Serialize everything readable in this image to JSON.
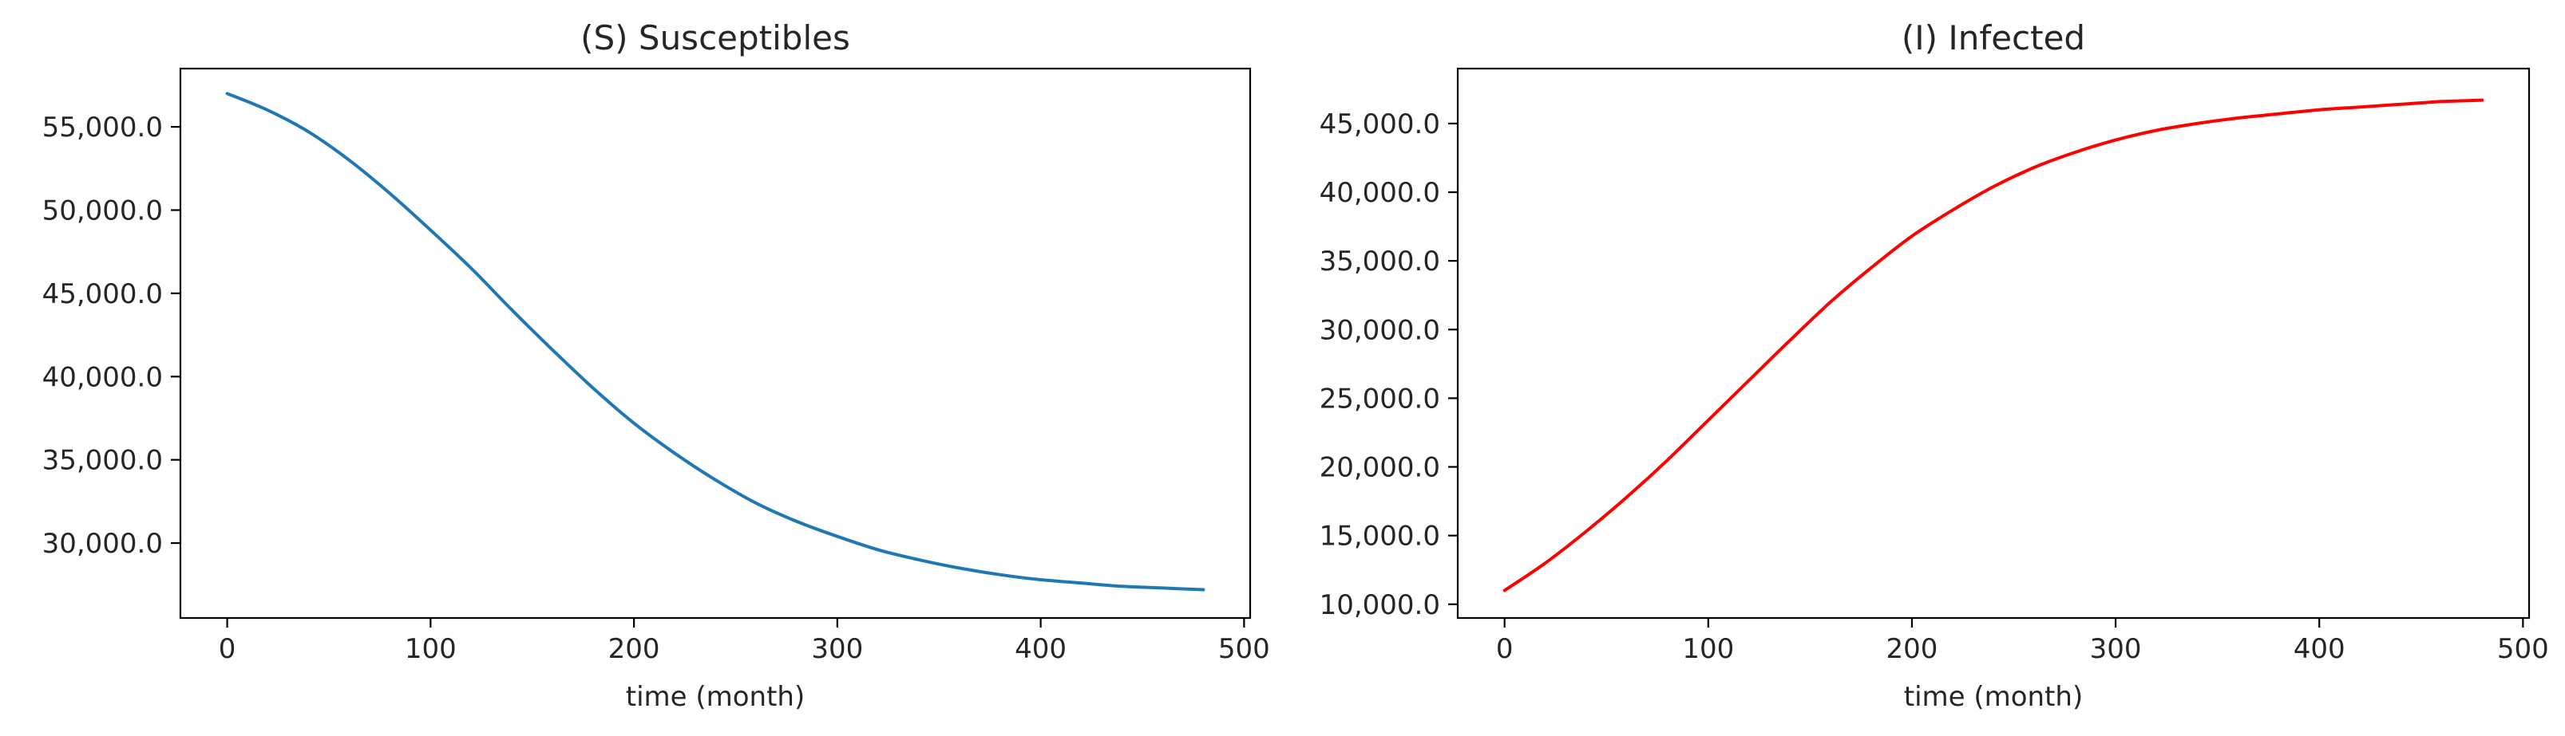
{
  "chart_data": [
    {
      "type": "line",
      "title": "(S) Susceptibles",
      "xlabel": "time (month)",
      "ylabel": "",
      "xlim": [
        -23,
        503
      ],
      "ylim": [
        25500,
        58500
      ],
      "xticks": [
        0,
        100,
        200,
        300,
        400,
        500
      ],
      "xtick_labels": [
        "0",
        "100",
        "200",
        "300",
        "400",
        "500"
      ],
      "yticks": [
        30000,
        35000,
        40000,
        45000,
        50000,
        55000
      ],
      "ytick_labels": [
        "30,000.0",
        "35,000.0",
        "40,000.0",
        "45,000.0",
        "50,000.0",
        "55,000.0"
      ],
      "grid": false,
      "color": "#1f77b4",
      "series": [
        {
          "x": [
            0,
            20,
            40,
            60,
            80,
            100,
            120,
            140,
            160,
            180,
            200,
            220,
            240,
            260,
            280,
            300,
            320,
            340,
            360,
            380,
            400,
            420,
            440,
            460,
            480
          ],
          "y": [
            57000,
            56000,
            54700,
            53000,
            51000,
            48800,
            46500,
            44000,
            41600,
            39300,
            37200,
            35400,
            33800,
            32400,
            31300,
            30400,
            29600,
            29000,
            28500,
            28100,
            27800,
            27600,
            27400,
            27300,
            27200
          ]
        }
      ]
    },
    {
      "type": "line",
      "title": "(I) Infected",
      "xlabel": "time (month)",
      "ylabel": "",
      "xlim": [
        -23,
        503
      ],
      "ylim": [
        9000,
        49000
      ],
      "xticks": [
        0,
        100,
        200,
        300,
        400,
        500
      ],
      "xtick_labels": [
        "0",
        "100",
        "200",
        "300",
        "400",
        "500"
      ],
      "yticks": [
        10000,
        15000,
        20000,
        25000,
        30000,
        35000,
        40000,
        45000
      ],
      "ytick_labels": [
        "10,000.0",
        "15,000.0",
        "20,000.0",
        "25,000.0",
        "30,000.0",
        "35,000.0",
        "40,000.0",
        "45,000.0"
      ],
      "grid": false,
      "color": "#ff0000",
      "series": [
        {
          "x": [
            0,
            20,
            40,
            60,
            80,
            100,
            120,
            140,
            160,
            180,
            200,
            220,
            240,
            260,
            280,
            300,
            320,
            340,
            360,
            380,
            400,
            420,
            440,
            460,
            480
          ],
          "y": [
            11000,
            13000,
            15300,
            17800,
            20500,
            23400,
            26300,
            29200,
            32000,
            34500,
            36800,
            38700,
            40400,
            41800,
            42900,
            43800,
            44500,
            45000,
            45400,
            45700,
            46000,
            46200,
            46400,
            46600,
            46700
          ]
        }
      ]
    }
  ]
}
